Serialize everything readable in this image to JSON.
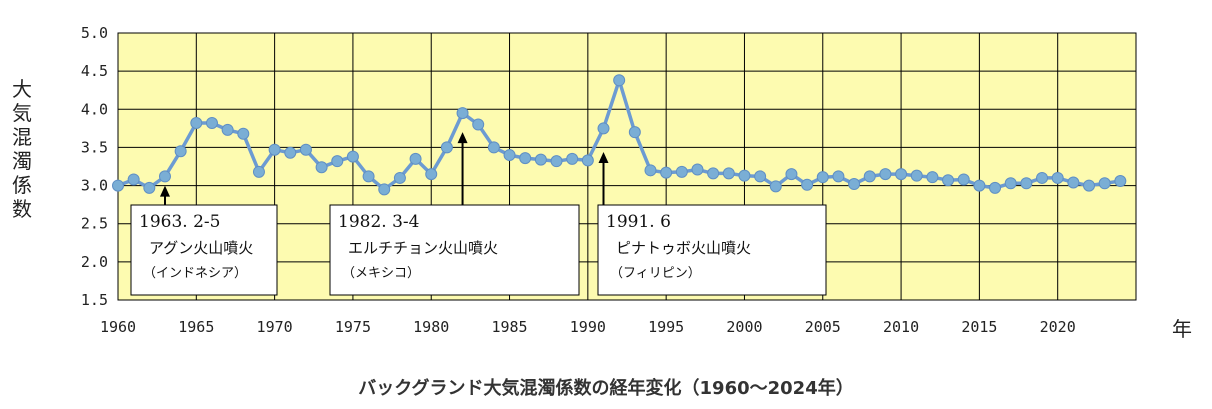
{
  "chart_data": {
    "type": "line",
    "title": "バックグランド大気混濁係数の経年変化（1960～2024年）",
    "ylabel": "大気混濁係数",
    "xlabel": "年",
    "ylim": [
      1.5,
      5.0
    ],
    "y_ticks": [
      "5.0",
      "4.5",
      "4.0",
      "3.5",
      "3.0",
      "2.5",
      "2.0",
      "1.5"
    ],
    "y_tick_values": [
      5.0,
      4.5,
      4.0,
      3.5,
      3.0,
      2.5,
      2.0,
      1.5
    ],
    "x_ticks": [
      "1960",
      "1965",
      "1970",
      "1975",
      "1980",
      "1985",
      "1990",
      "1995",
      "2000",
      "2005",
      "2010",
      "2015",
      "2020"
    ],
    "x_tick_values": [
      1960,
      1965,
      1970,
      1975,
      1980,
      1985,
      1990,
      1995,
      2000,
      2005,
      2010,
      2015,
      2020
    ],
    "xlim": [
      1960,
      2025
    ],
    "grid": true,
    "colors": {
      "plot_bg": "#fdfbb0",
      "line": "#6c9bd2",
      "marker": "#7aaed5",
      "grid": "#000000"
    },
    "x": [
      1960,
      1961,
      1962,
      1963,
      1964,
      1965,
      1966,
      1967,
      1968,
      1969,
      1970,
      1971,
      1972,
      1973,
      1974,
      1975,
      1976,
      1977,
      1978,
      1979,
      1980,
      1981,
      1982,
      1983,
      1984,
      1985,
      1986,
      1987,
      1988,
      1989,
      1990,
      1991,
      1992,
      1993,
      1994,
      1995,
      1996,
      1997,
      1998,
      1999,
      2000,
      2001,
      2002,
      2003,
      2004,
      2005,
      2006,
      2007,
      2008,
      2009,
      2010,
      2011,
      2012,
      2013,
      2014,
      2015,
      2016,
      2017,
      2018,
      2019,
      2020,
      2021,
      2022,
      2023,
      2024
    ],
    "values": [
      3.0,
      3.08,
      2.97,
      3.12,
      3.45,
      3.82,
      3.82,
      3.73,
      3.68,
      3.18,
      3.47,
      3.43,
      3.47,
      3.24,
      3.32,
      3.38,
      3.12,
      2.95,
      3.1,
      3.35,
      3.15,
      3.5,
      3.95,
      3.8,
      3.5,
      3.4,
      3.36,
      3.34,
      3.32,
      3.35,
      3.33,
      3.75,
      4.38,
      3.7,
      3.2,
      3.17,
      3.18,
      3.21,
      3.16,
      3.16,
      3.13,
      3.12,
      2.99,
      3.15,
      3.01,
      3.11,
      3.12,
      3.02,
      3.12,
      3.15,
      3.15,
      3.13,
      3.11,
      3.07,
      3.08,
      3.0,
      2.97,
      3.03,
      3.03,
      3.1,
      3.1,
      3.04,
      3.0,
      3.03,
      3.06
    ],
    "annotations": [
      {
        "date": "1963. 2-5",
        "name": "アグン火山噴火",
        "country": "（インドネシア）",
        "arrow_year": 1963,
        "arrow_to": 3.0,
        "arrow_from": 2.9
      },
      {
        "date": "1982. 3-4",
        "name": "エルチチョン火山噴火",
        "country": "（メキシコ）",
        "arrow_year": 1982,
        "arrow_to": 3.7,
        "arrow_from": 2.9
      },
      {
        "date": "1991. 6",
        "name": "ピナトゥボ火山噴火",
        "country": "（フィリピン）",
        "arrow_year": 1991,
        "arrow_to": 3.44,
        "arrow_from": 2.9
      }
    ]
  }
}
